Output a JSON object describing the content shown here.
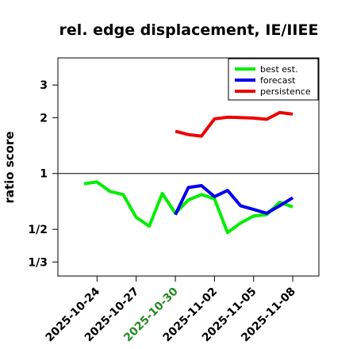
{
  "chart_data": {
    "type": "line",
    "title": "rel. edge displacement, IE/IIEE",
    "xlabel": "",
    "ylabel": "ratio score",
    "y_scale": "log",
    "ylim": [
      0.28,
      4.2
    ],
    "xlim": [
      "2025-10-21",
      "2025-11-10"
    ],
    "y_ticks": [
      {
        "value": 0.3333,
        "label": "1/3"
      },
      {
        "value": 0.5,
        "label": "1/2"
      },
      {
        "value": 1,
        "label": "1"
      },
      {
        "value": 2,
        "label": "2"
      },
      {
        "value": 3,
        "label": "3"
      }
    ],
    "x_ticks": [
      {
        "date": "2025-10-24",
        "label": "2025-10-24",
        "color": "#000000"
      },
      {
        "date": "2025-10-27",
        "label": "2025-10-27",
        "color": "#000000"
      },
      {
        "date": "2025-10-30",
        "label": "2025-10-30",
        "color": "#228b22"
      },
      {
        "date": "2025-11-02",
        "label": "2025-11-02",
        "color": "#000000"
      },
      {
        "date": "2025-11-05",
        "label": "2025-11-05",
        "color": "#000000"
      },
      {
        "date": "2025-11-08",
        "label": "2025-11-08",
        "color": "#000000"
      }
    ],
    "reference_line": 1,
    "grid": false,
    "legend_position": "top-right",
    "series": [
      {
        "name": "best est.",
        "color": "#00ee00",
        "points": [
          [
            "2025-10-23",
            0.88
          ],
          [
            "2025-10-24",
            0.9
          ],
          [
            "2025-10-25",
            0.8
          ],
          [
            "2025-10-26",
            0.77
          ],
          [
            "2025-10-27",
            0.58
          ],
          [
            "2025-10-28",
            0.52
          ],
          [
            "2025-10-29",
            0.78
          ],
          [
            "2025-10-30",
            0.61
          ],
          [
            "2025-10-31",
            0.72
          ],
          [
            "2025-11-01",
            0.77
          ],
          [
            "2025-11-02",
            0.73
          ],
          [
            "2025-11-03",
            0.48
          ],
          [
            "2025-11-04",
            0.54
          ],
          [
            "2025-11-05",
            0.59
          ],
          [
            "2025-11-06",
            0.6
          ],
          [
            "2025-11-07",
            0.7
          ],
          [
            "2025-11-08",
            0.66
          ]
        ]
      },
      {
        "name": "forecast",
        "color": "#0000ee",
        "points": [
          [
            "2025-10-30",
            0.6
          ],
          [
            "2025-10-31",
            0.84
          ],
          [
            "2025-11-01",
            0.86
          ],
          [
            "2025-11-02",
            0.75
          ],
          [
            "2025-11-03",
            0.81
          ],
          [
            "2025-11-04",
            0.67
          ],
          [
            "2025-11-05",
            0.64
          ],
          [
            "2025-11-06",
            0.61
          ],
          [
            "2025-11-07",
            0.67
          ],
          [
            "2025-11-08",
            0.74
          ]
        ]
      },
      {
        "name": "persistence",
        "color": "#ee0000",
        "points": [
          [
            "2025-10-30",
            1.69
          ],
          [
            "2025-10-31",
            1.62
          ],
          [
            "2025-11-01",
            1.59
          ],
          [
            "2025-11-02",
            1.97
          ],
          [
            "2025-11-03",
            2.01
          ],
          [
            "2025-11-04",
            2.0
          ],
          [
            "2025-11-05",
            1.99
          ],
          [
            "2025-11-06",
            1.96
          ],
          [
            "2025-11-07",
            2.13
          ],
          [
            "2025-11-08",
            2.09
          ]
        ]
      }
    ]
  }
}
